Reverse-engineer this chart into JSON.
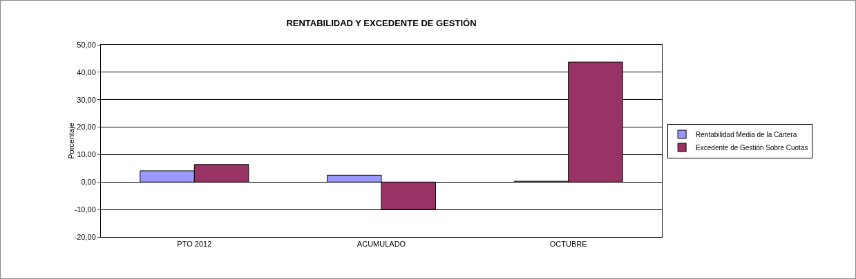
{
  "chart_data": {
    "type": "bar",
    "title": "RENTABILIDAD Y EXCEDENTE DE GESTIÓN",
    "ylabel": "Porcentaje",
    "categories": [
      "PTO 2012",
      "ACUMULADO",
      "OCTUBRE"
    ],
    "series": [
      {
        "name": "Rentabilidad Media de la Cartera",
        "color": "#9999ff",
        "values": [
          4.1,
          2.5,
          0.3
        ]
      },
      {
        "name": "Excedente de Gestión Sobre Cuotas",
        "color": "#993366",
        "values": [
          6.4,
          -10.0,
          43.7
        ]
      }
    ],
    "ylim": [
      -20,
      50
    ],
    "yticks": [
      {
        "value": -20,
        "label": "-20,00"
      },
      {
        "value": -10,
        "label": "-10,00"
      },
      {
        "value": 0,
        "label": "0,00"
      },
      {
        "value": 10,
        "label": "10,00"
      },
      {
        "value": 20,
        "label": "20,00"
      },
      {
        "value": 30,
        "label": "30,00"
      },
      {
        "value": 40,
        "label": "40,00"
      },
      {
        "value": 50,
        "label": "50,00"
      }
    ],
    "grid": "y",
    "legend": "right"
  }
}
